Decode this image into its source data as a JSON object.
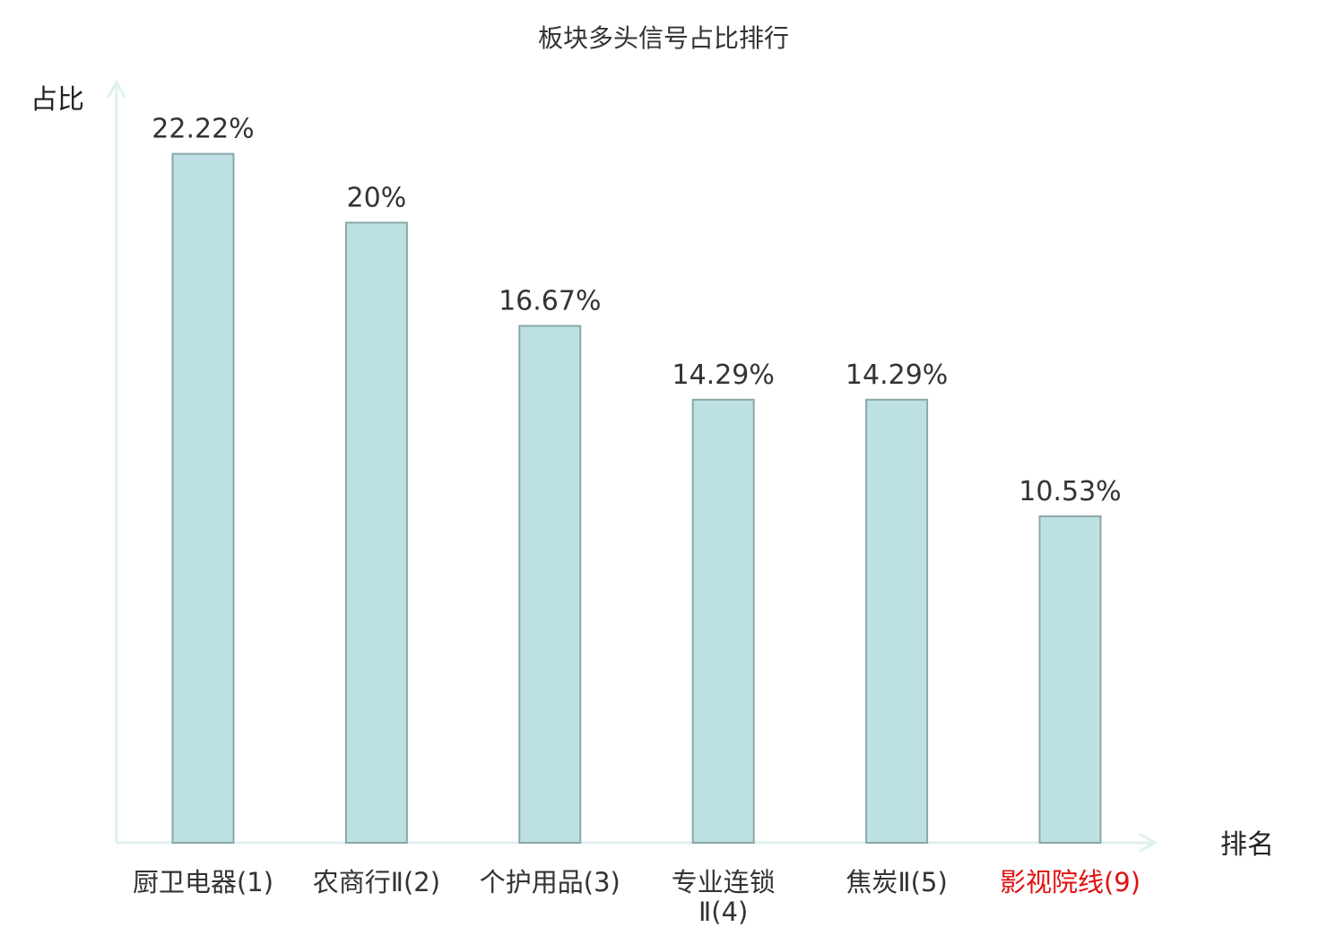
{
  "chart_data": {
    "type": "bar",
    "title": "板块多头信号占比排行",
    "xlabel": "排名",
    "ylabel": "占比",
    "ylim": [
      0,
      24
    ],
    "grid": false,
    "categories": [
      [
        "厨卫电器(1)"
      ],
      [
        "农商行Ⅱ(2)"
      ],
      [
        "个护用品(3)"
      ],
      [
        "专业连锁",
        "Ⅱ(4)"
      ],
      [
        "焦炭Ⅱ(5)"
      ],
      [
        "影视院线(9)"
      ]
    ],
    "values": [
      22.22,
      20,
      16.67,
      14.29,
      14.29,
      10.53
    ],
    "value_labels": [
      "22.22%",
      "20%",
      "16.67%",
      "14.29%",
      "14.29%",
      "10.53%"
    ],
    "highlight_index": 5,
    "colors": {
      "bar_fill": "#bde0e3",
      "bar_stroke": "#8aa7aa",
      "axis": "#dff1ef",
      "text": "#333333",
      "highlight_text": "#e01010"
    }
  }
}
